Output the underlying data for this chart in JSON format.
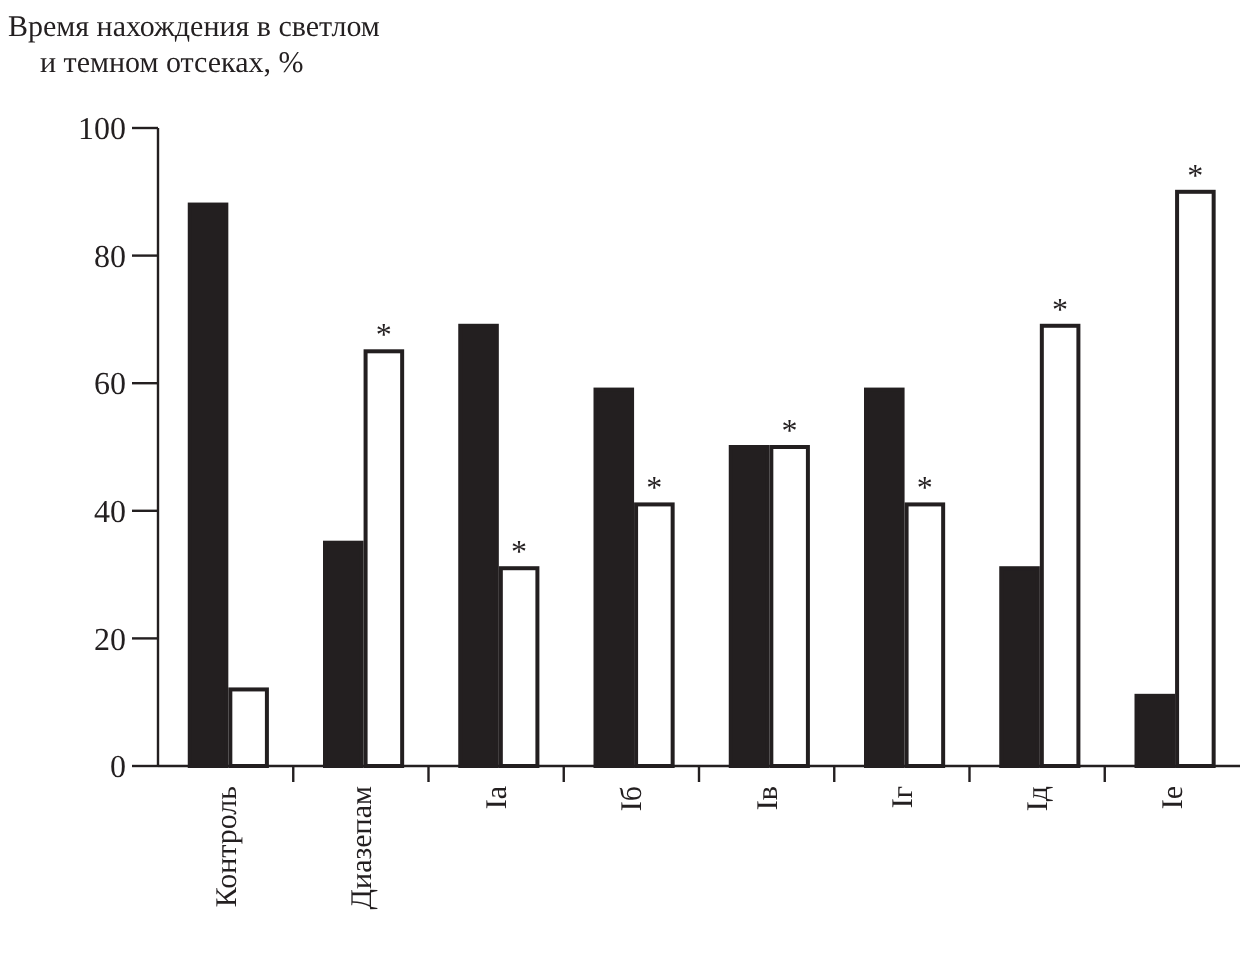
{
  "chart_data": {
    "type": "bar",
    "ylabel": "Время нахождения в светлом\nи темном отсеках, %",
    "categories": [
      "Контроль",
      "Диазепам",
      "Iа",
      "Iб",
      "Iв",
      "Iг",
      "Iд",
      "Iе"
    ],
    "series": [
      {
        "color": "#231f20",
        "values": [
          88,
          35,
          69,
          59,
          50,
          59,
          31,
          11
        ]
      },
      {
        "color": "#ffffff",
        "values": [
          12,
          65,
          31,
          41,
          50,
          41,
          69,
          90
        ]
      }
    ],
    "ylim": [
      0,
      100
    ],
    "yticks": [
      0,
      20,
      40,
      60,
      80,
      100
    ],
    "grid": false,
    "annotations": [
      {
        "text": "*",
        "x": "Диазепам",
        "y": 65
      },
      {
        "text": "*",
        "x": "Iа",
        "y": 31
      },
      {
        "text": "*",
        "x": "Iб",
        "y": 41
      },
      {
        "text": "*",
        "x": "Iв",
        "y": 50
      },
      {
        "text": "*",
        "x": "Iг",
        "y": 41
      },
      {
        "text": "*",
        "x": "Iд",
        "y": 69
      },
      {
        "text": "*",
        "x": "Iе",
        "y": 90
      }
    ]
  }
}
